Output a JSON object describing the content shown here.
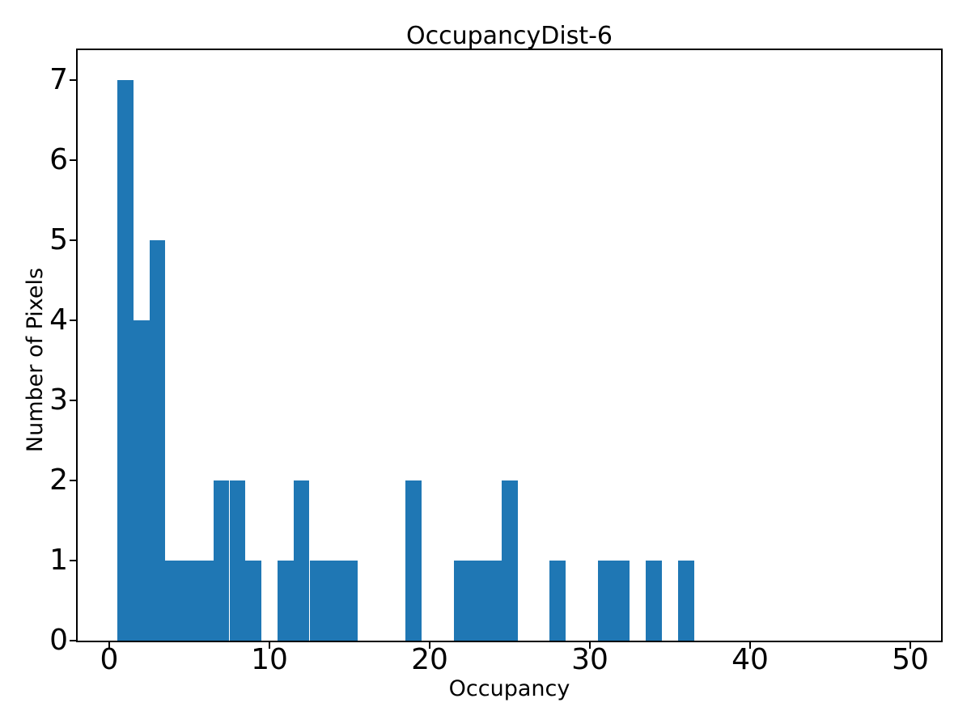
{
  "chart_data": {
    "type": "bar",
    "subtype": "histogram",
    "title": "OccupancyDist-6",
    "xlabel": "Occupancy",
    "ylabel": "Number of Pixels",
    "bar_color": "#1f77b4",
    "axis_color": "#000000",
    "background_color": "#ffffff",
    "bin_width": 1,
    "bin_centers": [
      1,
      2,
      3,
      4,
      5,
      6,
      7,
      8,
      9,
      10,
      11,
      12,
      13,
      14,
      15,
      16,
      17,
      18,
      19,
      20,
      21,
      22,
      23,
      24,
      25,
      26,
      27,
      28,
      29,
      30,
      31,
      32,
      33,
      34,
      35,
      36
    ],
    "counts": [
      7,
      4,
      5,
      1,
      1,
      1,
      2,
      2,
      1,
      0,
      1,
      2,
      1,
      1,
      1,
      0,
      0,
      0,
      2,
      0,
      0,
      1,
      1,
      1,
      2,
      0,
      0,
      1,
      0,
      0,
      1,
      1,
      0,
      1,
      0,
      1
    ],
    "xticks": [
      0,
      10,
      20,
      30,
      40,
      50
    ],
    "yticks": [
      0,
      1,
      2,
      3,
      4,
      5,
      6,
      7
    ],
    "xlim": [
      -1.97,
      51.92
    ],
    "ylim": [
      0,
      7.37
    ],
    "grid": false,
    "legend": null
  }
}
